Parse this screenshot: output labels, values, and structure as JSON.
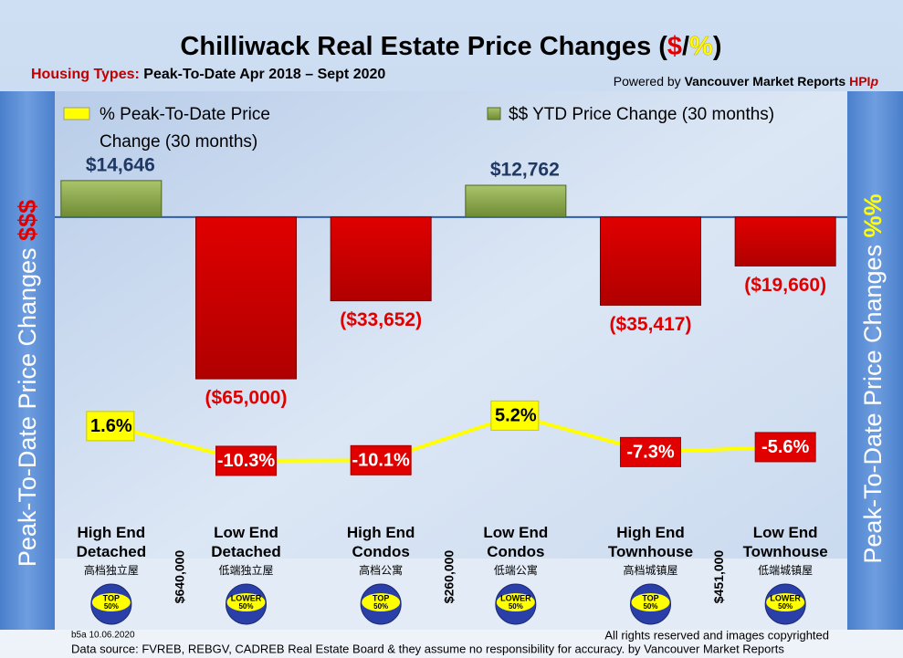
{
  "chart_data": {
    "type": "bar",
    "title_parts": [
      "Chilliwack Real Estate Price Changes (",
      "$",
      "/",
      "%",
      ")"
    ],
    "subtitle_parts": [
      "Housing Types:",
      "Peak-To-Date Apr 2018 – Sept 2020"
    ],
    "powered_by_parts": [
      "Powered by",
      "Vancouver Market Reports",
      "HPI",
      "p"
    ],
    "left_axis_label_parts": [
      "Peak-To-Date Price Changes",
      "$$$"
    ],
    "right_axis_label_parts": [
      "Peak-To-Date  Price  Changes",
      "%%"
    ],
    "categories": [
      "High End Detached",
      "Low End Detached",
      "High End Condos",
      "Low End Condos",
      "High End Townhouse",
      "Low End Townhouse"
    ],
    "chinese_labels": [
      "高档独立屋",
      "低端独立屋",
      "高档公寓",
      "低端公寓",
      "高档城镇屋",
      "低端城镇屋"
    ],
    "badges": [
      [
        "TOP",
        "50%"
      ],
      [
        "LOWER",
        "50%"
      ],
      [
        "TOP",
        "50%"
      ],
      [
        "LOWER",
        "50%"
      ],
      [
        "TOP",
        "50%"
      ],
      [
        "LOWER",
        "50%"
      ]
    ],
    "price_thresholds": [
      "$640,000",
      "$260,000",
      "$451,000"
    ],
    "series": [
      {
        "name": "$$ YTD Price Change (30 months)",
        "type": "bar",
        "axis": "y",
        "color": "#8aa84a",
        "negative_color": "#cc0000",
        "values": [
          14646,
          -65000,
          -33652,
          12762,
          -35417,
          -19660
        ],
        "value_labels": [
          "$14,646",
          "($65,000)",
          "($33,652)",
          "$12,762",
          "($35,417)",
          "($19,660)"
        ]
      },
      {
        "name": "% Peak-To-Date Price Change (30 months)",
        "type": "line",
        "axis": "y2",
        "color": "#ffff00",
        "negative_color": "#e00000",
        "values": [
          1.6,
          -10.3,
          -10.1,
          5.2,
          -7.3,
          -5.6
        ],
        "value_labels": [
          "1.6%",
          "-10.3%",
          "-10.1%",
          "5.2%",
          "-7.3%",
          "-5.6%"
        ]
      }
    ],
    "ylim": [
      -80000,
      30000
    ],
    "y2lim": [
      -15,
      10
    ],
    "legend": "top",
    "footer_left": "b5a 10.06.2020",
    "footer_right": "All rights reserved and  images copyrighted",
    "source": "Data source: FVREB, REBGV, CADREB Real Estate Board & they assume no responsibility for accuracy. by Vancouver Market Reports"
  }
}
